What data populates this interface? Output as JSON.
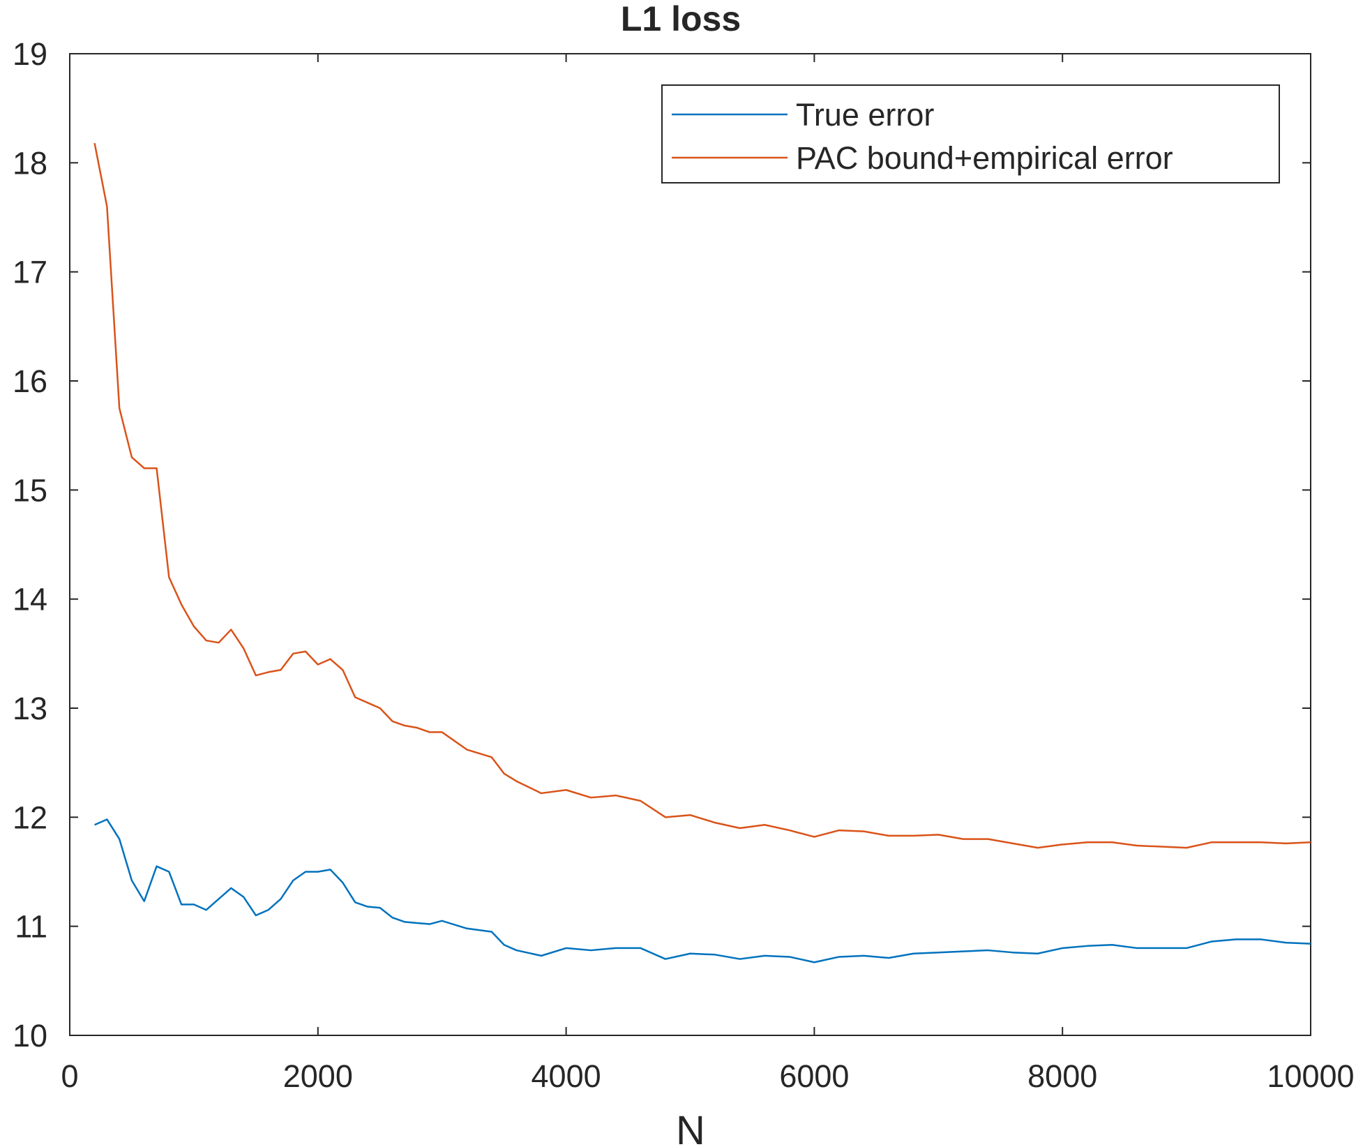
{
  "chart_data": {
    "type": "line",
    "title": "L1 loss",
    "xlabel": "N",
    "x": [
      200,
      300,
      400,
      500,
      600,
      700,
      800,
      900,
      1000,
      1100,
      1200,
      1300,
      1400,
      1500,
      1600,
      1700,
      1800,
      1900,
      2000,
      2100,
      2200,
      2300,
      2400,
      2500,
      2600,
      2700,
      2800,
      2900,
      3000,
      3200,
      3400,
      3500,
      3600,
      3800,
      4000,
      4200,
      4400,
      4600,
      4800,
      5000,
      5200,
      5400,
      5600,
      5800,
      6000,
      6200,
      6400,
      6600,
      6800,
      7000,
      7200,
      7400,
      7600,
      7800,
      8000,
      8200,
      8400,
      8600,
      8800,
      9000,
      9200,
      9400,
      9600,
      9800,
      10000
    ],
    "series": [
      {
        "name": "True error",
        "color": "#0072bd",
        "values": [
          11.93,
          11.98,
          11.8,
          11.42,
          11.23,
          11.55,
          11.5,
          11.2,
          11.2,
          11.15,
          11.25,
          11.35,
          11.27,
          11.1,
          11.15,
          11.25,
          11.42,
          11.5,
          11.5,
          11.52,
          11.4,
          11.22,
          11.18,
          11.17,
          11.08,
          11.04,
          11.03,
          11.02,
          11.05,
          10.98,
          10.95,
          10.83,
          10.78,
          10.73,
          10.8,
          10.78,
          10.8,
          10.8,
          10.7,
          10.75,
          10.74,
          10.7,
          10.73,
          10.72,
          10.67,
          10.72,
          10.73,
          10.71,
          10.75,
          10.76,
          10.77,
          10.78,
          10.76,
          10.75,
          10.8,
          10.82,
          10.83,
          10.8,
          10.8,
          10.8,
          10.86,
          10.88,
          10.88,
          10.85,
          10.84
        ]
      },
      {
        "name": "PAC bound+empirical error",
        "color": "#d95319",
        "values": [
          18.18,
          17.6,
          15.75,
          15.3,
          15.2,
          15.2,
          14.2,
          13.95,
          13.75,
          13.62,
          13.6,
          13.72,
          13.55,
          13.3,
          13.33,
          13.35,
          13.5,
          13.52,
          13.4,
          13.45,
          13.35,
          13.1,
          13.05,
          13.0,
          12.88,
          12.84,
          12.82,
          12.78,
          12.78,
          12.62,
          12.55,
          12.4,
          12.33,
          12.22,
          12.25,
          12.18,
          12.2,
          12.15,
          12.0,
          12.02,
          11.95,
          11.9,
          11.93,
          11.88,
          11.82,
          11.88,
          11.87,
          11.83,
          11.83,
          11.84,
          11.8,
          11.8,
          11.76,
          11.72,
          11.75,
          11.77,
          11.77,
          11.74,
          11.73,
          11.72,
          11.77,
          11.77,
          11.77,
          11.76,
          11.77
        ]
      }
    ],
    "xlim": [
      0,
      10000
    ],
    "xticks": [
      0,
      2000,
      4000,
      6000,
      8000,
      10000
    ],
    "ylim": [
      10,
      19
    ],
    "yticks": [
      10,
      11,
      12,
      13,
      14,
      15,
      16,
      17,
      18,
      19
    ],
    "legend": "upper right"
  }
}
